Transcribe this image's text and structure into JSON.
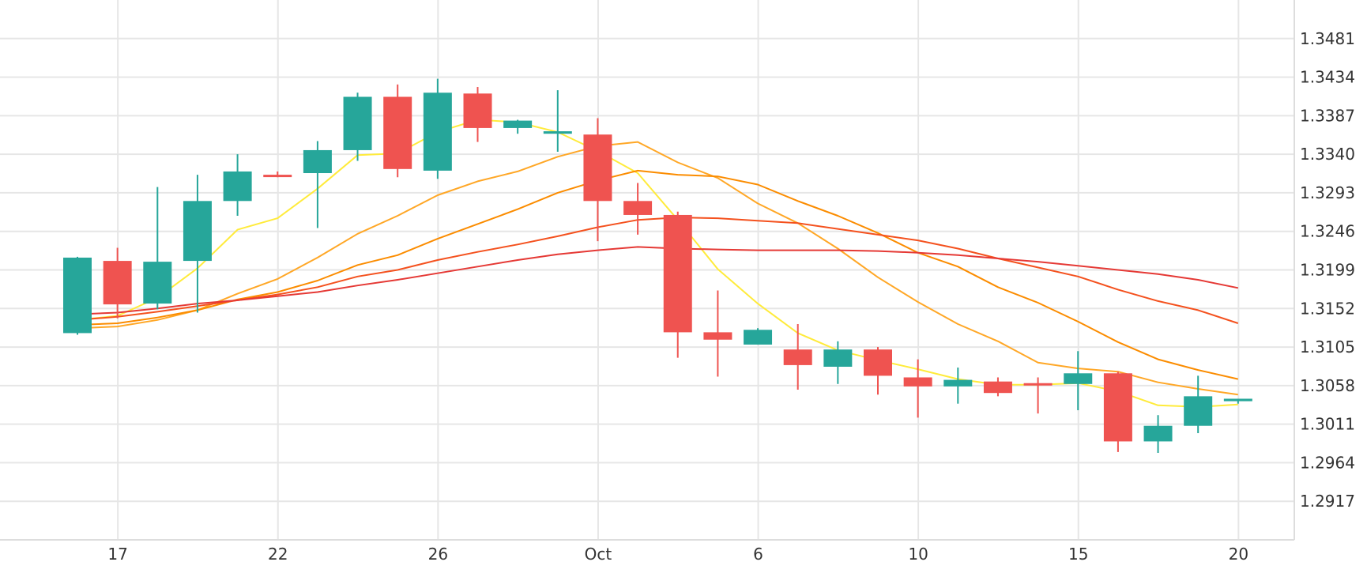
{
  "chart_data": {
    "type": "candlestick",
    "title": "",
    "xlabel": "",
    "ylabel": "",
    "x_tick_labels": [
      "17",
      "22",
      "26",
      "Oct",
      "6",
      "10",
      "15",
      "20"
    ],
    "y_tick_labels": [
      "1.3481",
      "1.3434",
      "1.3387",
      "1.3340",
      "1.3293",
      "1.3246",
      "1.3199",
      "1.3152",
      "1.3105",
      "1.3058",
      "1.3011",
      "1.2964",
      "1.2917"
    ],
    "ylim": [
      1.287,
      1.3528
    ],
    "grid": true,
    "legend": "none",
    "colors": {
      "up": "#26a69a",
      "down": "#ef5350",
      "ma1": "#ffeb3b",
      "ma2": "#ffa726",
      "ma3": "#fb8c00",
      "ma4": "#f4511e",
      "ma5": "#e53935"
    },
    "candles": [
      {
        "o": 1.3122,
        "h": 1.3215,
        "l": 1.312,
        "c": 1.3214
      },
      {
        "o": 1.321,
        "h": 1.3226,
        "l": 1.314,
        "c": 1.3157
      },
      {
        "o": 1.3158,
        "h": 1.33,
        "l": 1.3151,
        "c": 1.3209
      },
      {
        "o": 1.321,
        "h": 1.3315,
        "l": 1.3147,
        "c": 1.3283
      },
      {
        "o": 1.3283,
        "h": 1.334,
        "l": 1.3265,
        "c": 1.3319
      },
      {
        "o": 1.3315,
        "h": 1.3319,
        "l": 1.3312,
        "c": 1.3313
      },
      {
        "o": 1.3317,
        "h": 1.3356,
        "l": 1.325,
        "c": 1.3345
      },
      {
        "o": 1.3345,
        "h": 1.3415,
        "l": 1.3332,
        "c": 1.341
      },
      {
        "o": 1.341,
        "h": 1.3425,
        "l": 1.3312,
        "c": 1.3322
      },
      {
        "o": 1.332,
        "h": 1.3432,
        "l": 1.331,
        "c": 1.3415
      },
      {
        "o": 1.3414,
        "h": 1.3422,
        "l": 1.3355,
        "c": 1.3372
      },
      {
        "o": 1.3372,
        "h": 1.3382,
        "l": 1.3365,
        "c": 1.3381
      },
      {
        "o": 1.3365,
        "h": 1.3418,
        "l": 1.3343,
        "c": 1.3368
      },
      {
        "o": 1.3364,
        "h": 1.3384,
        "l": 1.3234,
        "c": 1.3283
      },
      {
        "o": 1.3283,
        "h": 1.3305,
        "l": 1.3242,
        "c": 1.3266
      },
      {
        "o": 1.3266,
        "h": 1.327,
        "l": 1.3092,
        "c": 1.3123
      },
      {
        "o": 1.3123,
        "h": 1.3174,
        "l": 1.3069,
        "c": 1.3114
      },
      {
        "o": 1.3108,
        "h": 1.3128,
        "l": 1.3108,
        "c": 1.3126
      },
      {
        "o": 1.3102,
        "h": 1.3133,
        "l": 1.3053,
        "c": 1.3083
      },
      {
        "o": 1.3081,
        "h": 1.3112,
        "l": 1.306,
        "c": 1.3102
      },
      {
        "o": 1.3102,
        "h": 1.3105,
        "l": 1.3047,
        "c": 1.307
      },
      {
        "o": 1.3068,
        "h": 1.309,
        "l": 1.3019,
        "c": 1.3057
      },
      {
        "o": 1.3057,
        "h": 1.308,
        "l": 1.3036,
        "c": 1.3065
      },
      {
        "o": 1.3063,
        "h": 1.3068,
        "l": 1.3045,
        "c": 1.3049
      },
      {
        "o": 1.3061,
        "h": 1.3068,
        "l": 1.3024,
        "c": 1.3059
      },
      {
        "o": 1.306,
        "h": 1.31,
        "l": 1.3028,
        "c": 1.3073
      },
      {
        "o": 1.3073,
        "h": 1.3075,
        "l": 1.2977,
        "c": 1.299
      },
      {
        "o": 1.299,
        "h": 1.3022,
        "l": 1.2976,
        "c": 1.3009
      },
      {
        "o": 1.3009,
        "h": 1.307,
        "l": 1.3,
        "c": 1.3045
      },
      {
        "o": 1.3039,
        "h": 1.3042,
        "l": 1.3036,
        "c": 1.3042
      }
    ],
    "series": [
      {
        "values": [
          1.3138,
          1.3143,
          1.3165,
          1.3201,
          1.3248,
          1.3262,
          1.3298,
          1.3339,
          1.3341,
          1.3367,
          1.3382,
          1.3379,
          1.3367,
          1.3344,
          1.3317,
          1.326,
          1.32,
          1.3158,
          1.3122,
          1.3101,
          1.3089,
          1.3078,
          1.3066,
          1.3059,
          1.3059,
          1.3061,
          1.3051,
          1.3034,
          1.3032,
          1.3035
        ]
      },
      {
        "values": [
          1.3128,
          1.313,
          1.3138,
          1.315,
          1.317,
          1.3188,
          1.3214,
          1.3243,
          1.3265,
          1.329,
          1.3307,
          1.3319,
          1.3337,
          1.335,
          1.3355,
          1.333,
          1.3311,
          1.328,
          1.3256,
          1.3225,
          1.319,
          1.316,
          1.3133,
          1.3112,
          1.3086,
          1.3079,
          1.3075,
          1.3062,
          1.3054,
          1.3047
        ]
      },
      {
        "values": [
          1.3132,
          1.3134,
          1.3141,
          1.315,
          1.3163,
          1.3172,
          1.3186,
          1.3205,
          1.3217,
          1.3237,
          1.3255,
          1.3273,
          1.3293,
          1.3308,
          1.332,
          1.3315,
          1.3313,
          1.3303,
          1.3283,
          1.3265,
          1.3244,
          1.322,
          1.3203,
          1.3178,
          1.3159,
          1.3136,
          1.3111,
          1.309,
          1.3077,
          1.3066
        ]
      },
      {
        "values": [
          1.3138,
          1.3142,
          1.3148,
          1.3155,
          1.3162,
          1.3169,
          1.3178,
          1.3191,
          1.3199,
          1.3211,
          1.3221,
          1.323,
          1.324,
          1.3251,
          1.326,
          1.3263,
          1.3262,
          1.3259,
          1.3256,
          1.3249,
          1.3242,
          1.3235,
          1.3225,
          1.3213,
          1.3202,
          1.3191,
          1.3175,
          1.3161,
          1.315,
          1.3134
        ]
      },
      {
        "values": [
          1.3145,
          1.3147,
          1.3152,
          1.3158,
          1.3162,
          1.3167,
          1.3172,
          1.318,
          1.3187,
          1.3195,
          1.3203,
          1.3211,
          1.3218,
          1.3223,
          1.3227,
          1.3225,
          1.3224,
          1.3223,
          1.3223,
          1.3223,
          1.3222,
          1.322,
          1.3217,
          1.3213,
          1.3209,
          1.3204,
          1.3199,
          1.3194,
          1.3187,
          1.3177
        ]
      }
    ]
  }
}
